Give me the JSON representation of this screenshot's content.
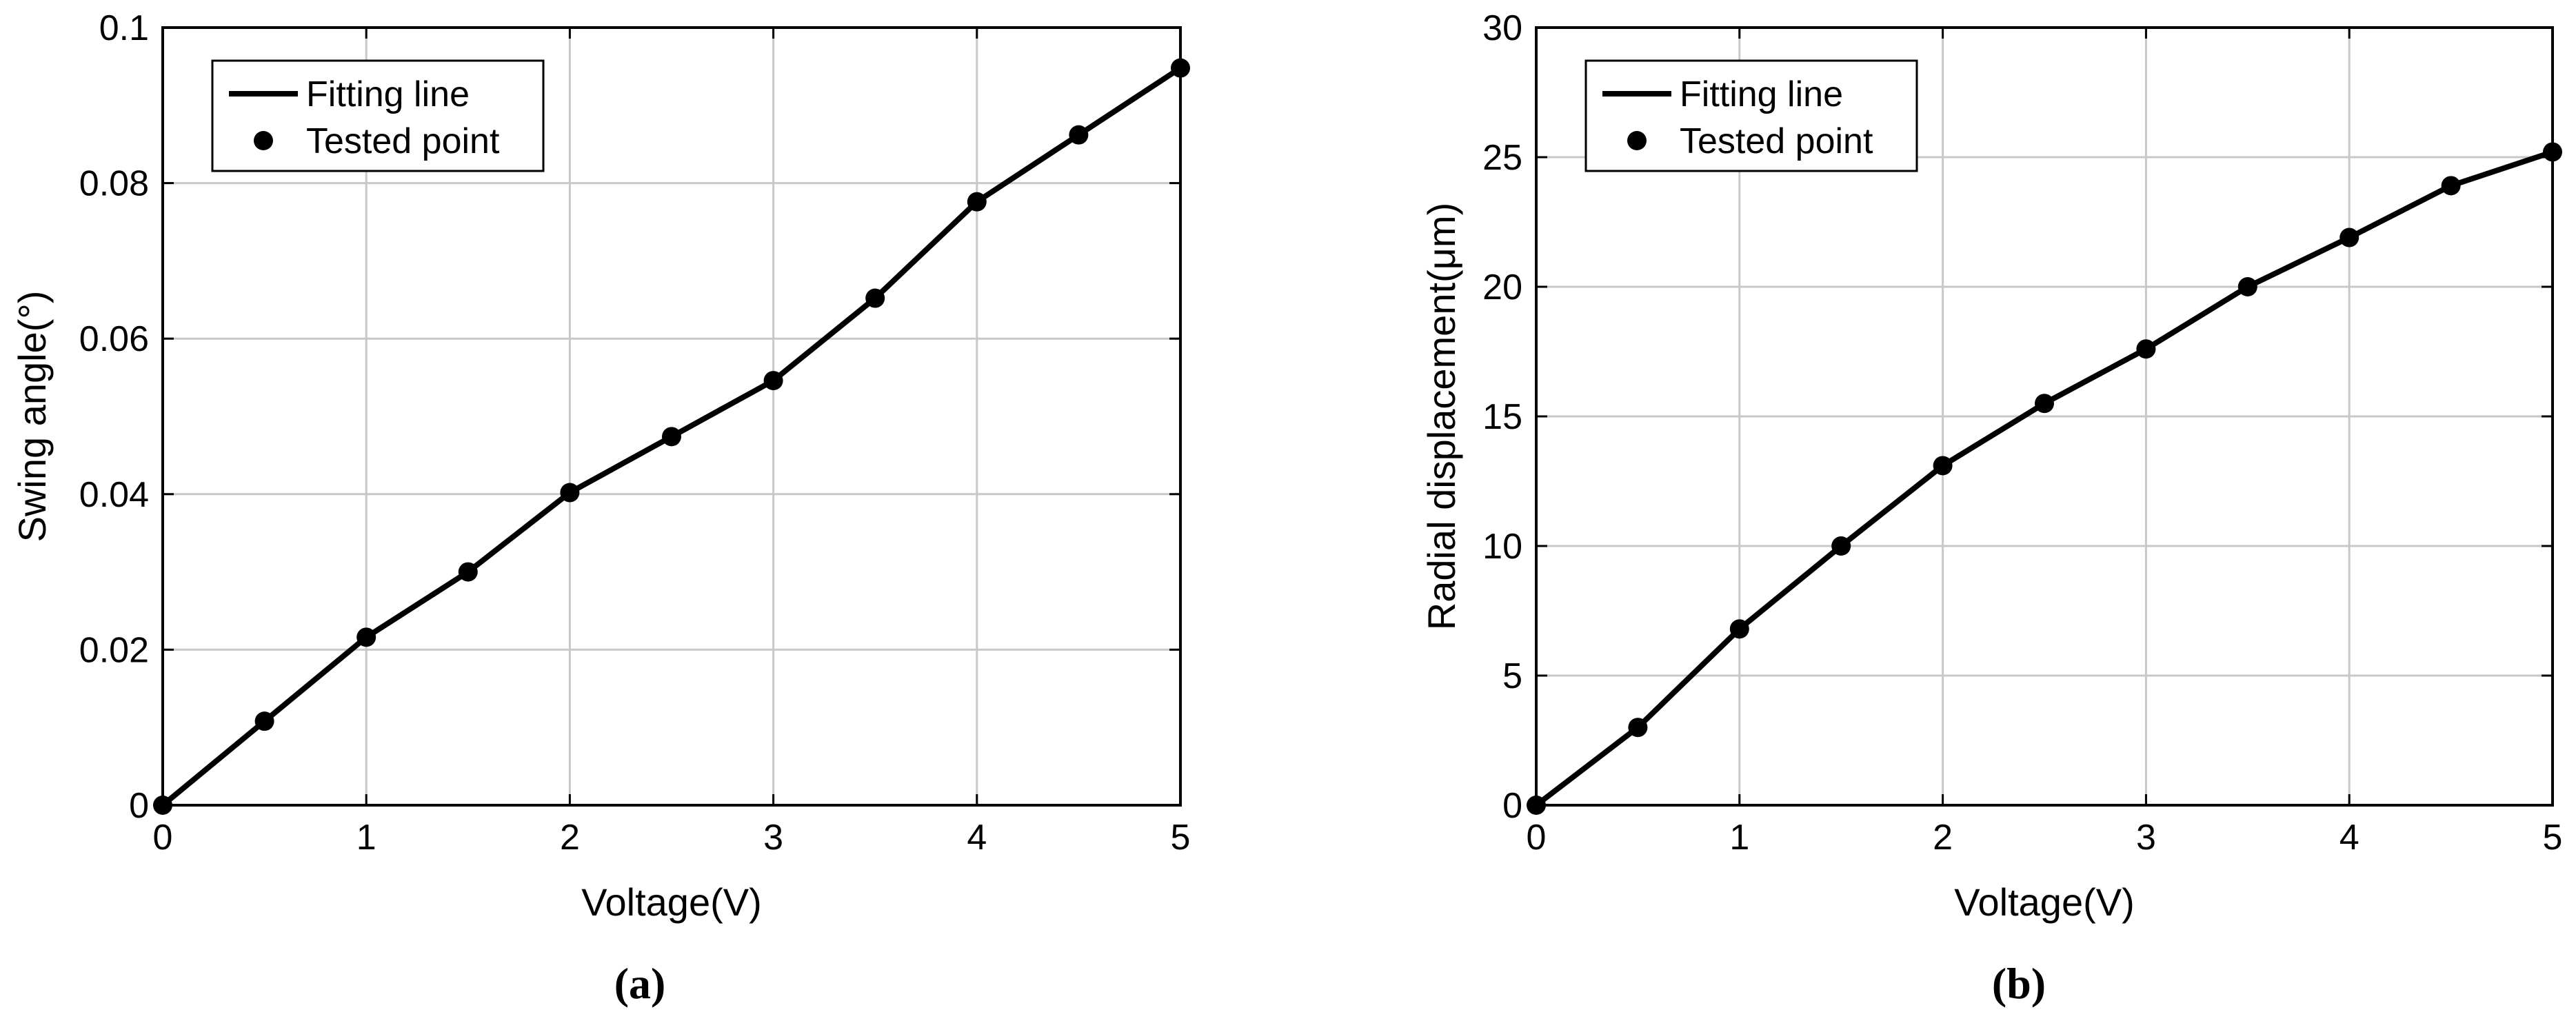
{
  "chart_data": [
    {
      "type": "line",
      "panel_label": "(a)",
      "xlabel": "Voltage(V)",
      "ylabel": "Swing angle(°)",
      "xlim": [
        0,
        5
      ],
      "ylim": [
        0,
        0.1
      ],
      "xticks": [
        0,
        1,
        2,
        3,
        4,
        5
      ],
      "xtick_labels": [
        "0",
        "1",
        "2",
        "3",
        "4",
        "5"
      ],
      "yticks": [
        0,
        0.02,
        0.04,
        0.06,
        0.08,
        0.1
      ],
      "ytick_labels": [
        "0",
        "0.02",
        "0.04",
        "0.06",
        "0.08",
        "0.1"
      ],
      "grid": true,
      "legend_position": "top-left",
      "legend": [
        "Fitting line",
        "Tested point"
      ],
      "x": [
        0,
        0.5,
        1,
        1.5,
        2,
        2.5,
        3,
        3.5,
        4,
        4.5,
        5
      ],
      "y": [
        0,
        0.0108,
        0.0216,
        0.03,
        0.0402,
        0.0474,
        0.0546,
        0.0652,
        0.0776,
        0.0862,
        0.0948
      ],
      "color": "#000000"
    },
    {
      "type": "line",
      "panel_label": "(b)",
      "xlabel": "Voltage(V)",
      "ylabel": "Radial displacement(μm)",
      "xlim": [
        0,
        5
      ],
      "ylim": [
        0,
        30
      ],
      "xticks": [
        0,
        1,
        2,
        3,
        4,
        5
      ],
      "xtick_labels": [
        "0",
        "1",
        "2",
        "3",
        "4",
        "5"
      ],
      "yticks": [
        0,
        5,
        10,
        15,
        20,
        25,
        30
      ],
      "ytick_labels": [
        "0",
        "5",
        "10",
        "15",
        "20",
        "25",
        "30"
      ],
      "grid": true,
      "legend_position": "top-left",
      "legend": [
        "Fitting line",
        "Tested point"
      ],
      "x": [
        0,
        0.5,
        1,
        1.5,
        2,
        2.5,
        3,
        3.5,
        4,
        4.5,
        5
      ],
      "y": [
        0,
        3.0,
        6.8,
        10.0,
        13.1,
        15.5,
        17.6,
        20.0,
        21.9,
        23.9,
        25.2
      ],
      "color": "#000000"
    }
  ]
}
